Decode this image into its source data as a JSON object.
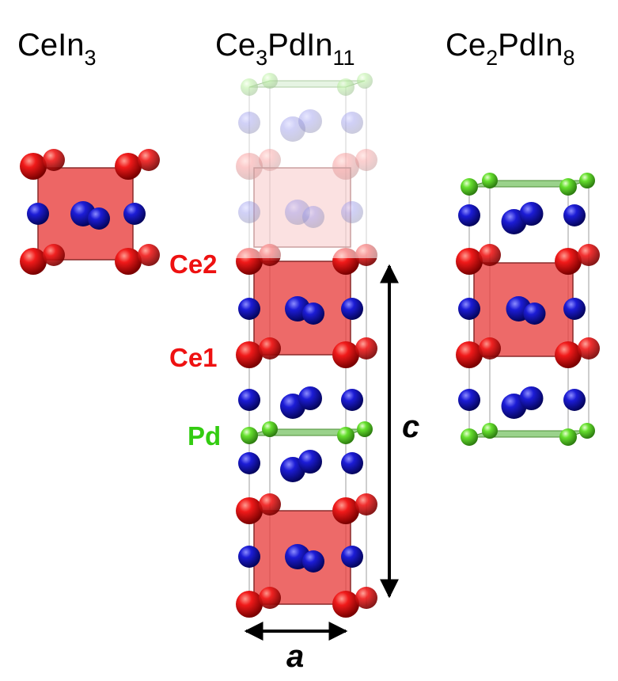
{
  "titles": {
    "left": {
      "base": "CeIn",
      "sub": "3"
    },
    "middle": {
      "p1": "Ce",
      "s1": "3",
      "p2": "PdIn",
      "s2": "11"
    },
    "right": {
      "p1": "Ce",
      "s1": "2",
      "p2": "PdIn",
      "s2": "8"
    }
  },
  "labels": {
    "ce2": "Ce2",
    "ce1": "Ce1",
    "pd": "Pd"
  },
  "axes": {
    "a": "a",
    "c": "c"
  },
  "colors": {
    "ce": "#e3000f",
    "in": "#1a1acc",
    "pd": "#5edc28",
    "cube_fill": "#e8403f",
    "pd_plane": "#6fbf5a",
    "ce_label": "#ee1111",
    "pd_label": "#33cc11"
  }
}
